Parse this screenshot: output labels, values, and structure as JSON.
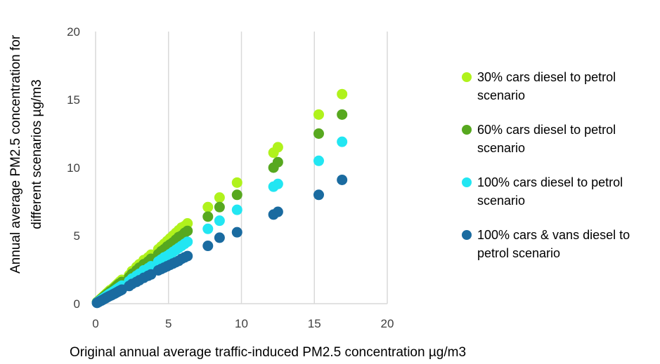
{
  "chart_data": {
    "type": "scatter",
    "title": "",
    "xlabel": "Original annual average traffic-induced PM2.5 concentration µg/m3",
    "ylabel_line1": "Annual average PM2.5 concentration for",
    "ylabel_line2": "different scenarios µg/m3",
    "xlim": [
      0,
      20
    ],
    "ylim": [
      0,
      20
    ],
    "x_ticks": [
      0,
      5,
      10,
      15,
      20
    ],
    "y_ticks": [
      0,
      5,
      10,
      15,
      20
    ],
    "grid": "vertical",
    "legend_position": "right",
    "x": [
      0.1,
      0.2,
      0.3,
      0.4,
      0.5,
      0.6,
      0.7,
      0.8,
      0.9,
      1.0,
      1.1,
      1.2,
      1.3,
      1.4,
      1.5,
      1.6,
      1.7,
      1.8,
      2.3,
      2.5,
      2.8,
      3.0,
      3.3,
      3.6,
      3.8,
      4.3,
      4.5,
      4.7,
      4.9,
      5.1,
      5.3,
      5.5,
      5.7,
      5.9,
      6.1,
      6.3,
      7.7,
      8.5,
      9.7,
      12.2,
      12.5,
      15.3,
      16.9
    ],
    "series": [
      {
        "name": "30% cars diesel to petrol scenario",
        "color": "#b0f21c",
        "values": [
          0.12,
          0.2,
          0.3,
          0.4,
          0.5,
          0.6,
          0.7,
          0.8,
          0.9,
          1.0,
          1.05,
          1.15,
          1.25,
          1.35,
          1.45,
          1.55,
          1.65,
          1.75,
          2.1,
          2.4,
          2.7,
          2.9,
          3.2,
          3.4,
          3.6,
          4.0,
          4.2,
          4.4,
          4.6,
          4.8,
          5.0,
          5.2,
          5.4,
          5.6,
          5.7,
          5.9,
          7.1,
          7.8,
          8.9,
          11.1,
          11.5,
          13.9,
          15.4
        ]
      },
      {
        "name": "60% cars diesel to petrol scenario",
        "color": "#57a81f",
        "values": [
          0.1,
          0.18,
          0.27,
          0.36,
          0.45,
          0.54,
          0.63,
          0.72,
          0.8,
          0.9,
          0.95,
          1.05,
          1.15,
          1.25,
          1.35,
          1.45,
          1.5,
          1.6,
          1.95,
          2.2,
          2.45,
          2.65,
          2.9,
          3.1,
          3.3,
          3.65,
          3.85,
          4.0,
          4.2,
          4.35,
          4.5,
          4.7,
          4.9,
          5.0,
          5.2,
          5.35,
          6.4,
          7.1,
          8.0,
          10.0,
          10.4,
          12.5,
          13.9
        ]
      },
      {
        "name": "100% cars diesel to petrol scenario",
        "color": "#22e6f2",
        "values": [
          0.08,
          0.15,
          0.23,
          0.3,
          0.38,
          0.45,
          0.52,
          0.6,
          0.68,
          0.75,
          0.8,
          0.88,
          0.95,
          1.03,
          1.1,
          1.18,
          1.25,
          1.33,
          1.65,
          1.85,
          2.05,
          2.2,
          2.45,
          2.6,
          2.75,
          3.1,
          3.25,
          3.4,
          3.5,
          3.65,
          3.8,
          3.95,
          4.1,
          4.25,
          4.4,
          4.55,
          5.5,
          6.1,
          6.9,
          8.6,
          8.8,
          10.5,
          11.9
        ]
      },
      {
        "name": "100% cars & vans diesel to petrol scenario",
        "color": "#1a6ba0",
        "values": [
          0.06,
          0.12,
          0.18,
          0.23,
          0.29,
          0.35,
          0.41,
          0.47,
          0.53,
          0.58,
          0.63,
          0.69,
          0.74,
          0.8,
          0.86,
          0.92,
          0.97,
          1.03,
          1.3,
          1.45,
          1.6,
          1.72,
          1.9,
          2.05,
          2.15,
          2.45,
          2.55,
          2.65,
          2.75,
          2.85,
          2.95,
          3.05,
          3.15,
          3.3,
          3.4,
          3.5,
          4.25,
          4.85,
          5.25,
          6.55,
          6.75,
          8.0,
          9.1
        ]
      }
    ],
    "legend_lines": [
      [
        "30% cars diesel to petrol",
        "scenario"
      ],
      [
        "60% cars diesel to petrol",
        "scenario"
      ],
      [
        "100% cars diesel to petrol",
        "scenario"
      ],
      [
        "100% cars & vans diesel to",
        "petrol scenario"
      ]
    ]
  }
}
